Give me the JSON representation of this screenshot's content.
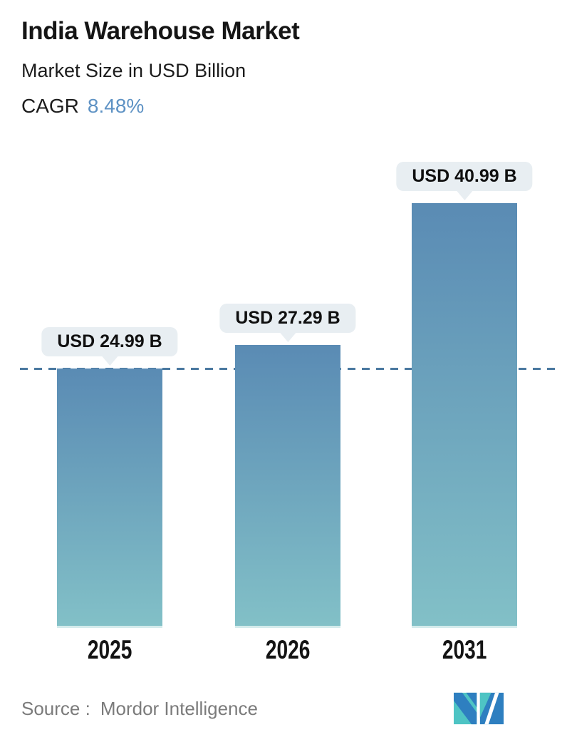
{
  "header": {
    "title": "India Warehouse Market",
    "subtitle": "Market Size in USD Billion",
    "cagr_label": "CAGR",
    "cagr_value": "8.48%"
  },
  "chart_data": {
    "type": "bar",
    "title": "India Warehouse Market",
    "ylabel": "Market Size in USD Billion",
    "unit": "USD Billion",
    "categories": [
      "2025",
      "2026",
      "2031"
    ],
    "values": [
      24.99,
      27.29,
      40.99
    ],
    "value_labels": [
      "USD 24.99 B",
      "USD 27.29 B",
      "USD 40.99 B"
    ],
    "cagr": "8.48%",
    "ylim": [
      0,
      43
    ],
    "grid": false,
    "legend": false,
    "reference_line": {
      "at_value": 24.99,
      "style": "dashed"
    },
    "colors": {
      "bar_gradient_top": "#5a8bb4",
      "bar_gradient_bottom": "#82c0c7",
      "tooltip_bg": "#e8eef2",
      "accent_blue": "#5e92c4",
      "dashed_line": "#4a78a0",
      "logo_teal": "#4ec4c4",
      "logo_blue": "#2e7fc0"
    }
  },
  "footer": {
    "source_label": "Source :",
    "source_value": "Mordor Intelligence",
    "logo_icon": "mordor-intelligence-logo"
  }
}
